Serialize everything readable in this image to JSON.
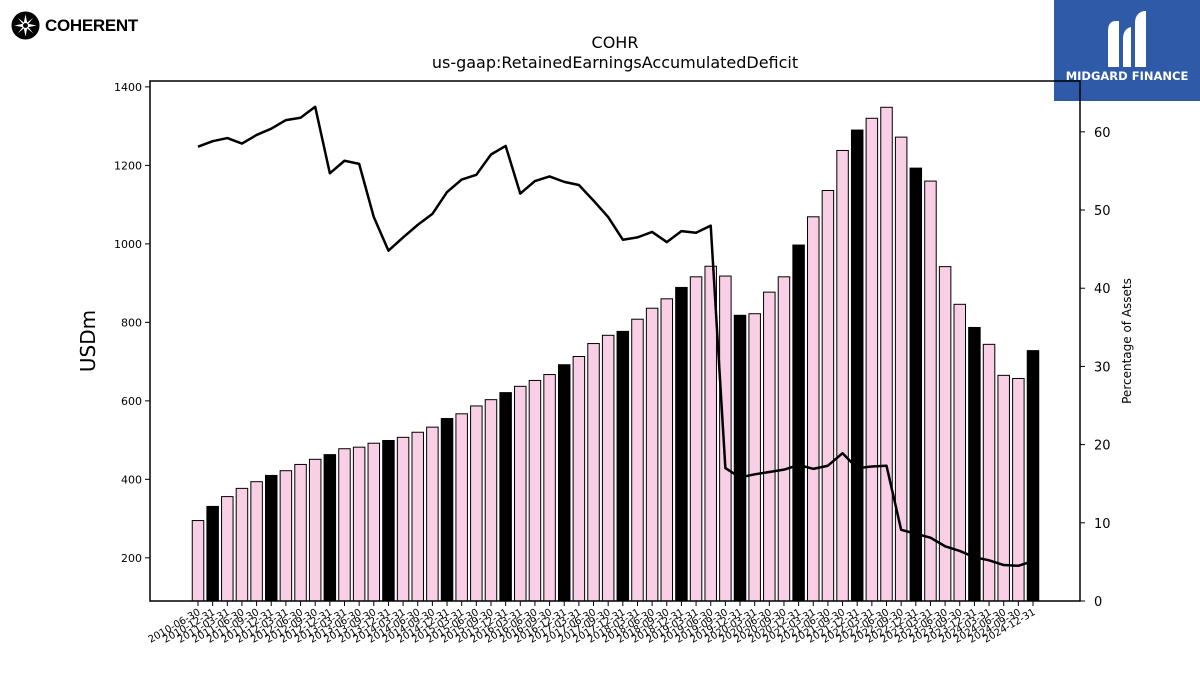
{
  "brand": {
    "name": "COHERENT",
    "logo_icon": "coherent-aperture-icon"
  },
  "badge": {
    "name": "MIDGARD FINANCE",
    "logo_icon": "midgard-m-icon",
    "color": "#2f5aa8"
  },
  "chart_data": {
    "type": "bar",
    "title": "COHR",
    "subtitle": "us-gaap:RetainedEarningsAccumulatedDeficit",
    "ylabel": "USDm",
    "y2label": "Percentage of Assets",
    "ylim": [
      90,
      1415
    ],
    "y2lim": [
      0,
      66.5
    ],
    "yticks": [
      200,
      400,
      600,
      800,
      1000,
      1200,
      1400
    ],
    "y2ticks": [
      0,
      10,
      20,
      30,
      40,
      50,
      60
    ],
    "bar_colors": {
      "pink": "#f9cfe5",
      "black": "#000000"
    },
    "categories": [
      "2010-06-30",
      "2010-12-31",
      "2011-03-31",
      "2011-06-30",
      "2011-09-30",
      "2011-12-31",
      "2012-03-31",
      "2012-06-30",
      "2012-09-30",
      "2012-12-31",
      "2013-03-31",
      "2013-06-30",
      "2013-09-30",
      "2013-12-31",
      "2014-03-31",
      "2014-06-30",
      "2014-09-30",
      "2014-12-31",
      "2015-03-31",
      "2015-06-30",
      "2015-09-30",
      "2015-12-31",
      "2016-03-31",
      "2016-06-30",
      "2016-09-30",
      "2016-12-31",
      "2017-03-31",
      "2017-06-30",
      "2017-09-30",
      "2017-12-31",
      "2018-03-31",
      "2018-06-30",
      "2018-09-30",
      "2018-12-31",
      "2019-03-31",
      "2019-06-30",
      "2019-09-30",
      "2019-12-31",
      "2020-03-31",
      "2020-06-30",
      "2020-09-30",
      "2020-12-31",
      "2021-03-31",
      "2021-06-30",
      "2021-09-30",
      "2021-12-31",
      "2022-03-31",
      "2022-06-30",
      "2022-09-30",
      "2022-12-31",
      "2023-03-31",
      "2023-06-30",
      "2023-09-30",
      "2023-12-31",
      "2024-03-31",
      "2024-06-30",
      "2024-09-30",
      "2024-12-31"
    ],
    "values": [
      295,
      331,
      356,
      377,
      394,
      410,
      422,
      438,
      451,
      463,
      478,
      482,
      492,
      499,
      507,
      520,
      533,
      555,
      567,
      587,
      603,
      621,
      637,
      652,
      667,
      692,
      713,
      746,
      767,
      777,
      808,
      836,
      860,
      889,
      916,
      943,
      918,
      818,
      822,
      877,
      916,
      997,
      1069,
      1136,
      1238,
      1290,
      1320,
      1348,
      1272,
      1193,
      1160,
      942,
      846,
      787,
      744,
      665,
      657,
      728
    ],
    "black_bars": [
      1,
      5,
      9,
      13,
      17,
      21,
      25,
      29,
      33,
      37,
      41,
      45,
      49,
      53,
      57
    ],
    "series": [
      {
        "name": "Percentage of Assets",
        "axis": "right",
        "values": [
          58.1,
          58.8,
          59.2,
          58.5,
          59.6,
          60.4,
          61.5,
          61.8,
          63.2,
          54.7,
          56.3,
          55.9,
          49.1,
          44.8,
          46.5,
          48.1,
          49.5,
          52.3,
          53.9,
          54.5,
          57.1,
          58.2,
          52.1,
          53.7,
          54.3,
          53.6,
          53.2,
          51.2,
          49.1,
          46.2,
          46.5,
          47.2,
          45.9,
          47.3,
          47.1,
          48.0,
          17.0,
          15.8,
          16.2,
          16.5,
          16.8,
          17.4,
          16.9,
          17.3,
          18.9,
          17.0,
          17.2,
          17.3,
          9.1,
          8.6,
          8.1,
          7.0,
          6.4,
          5.6,
          5.2,
          4.6,
          4.5,
          5.1
        ]
      }
    ]
  }
}
